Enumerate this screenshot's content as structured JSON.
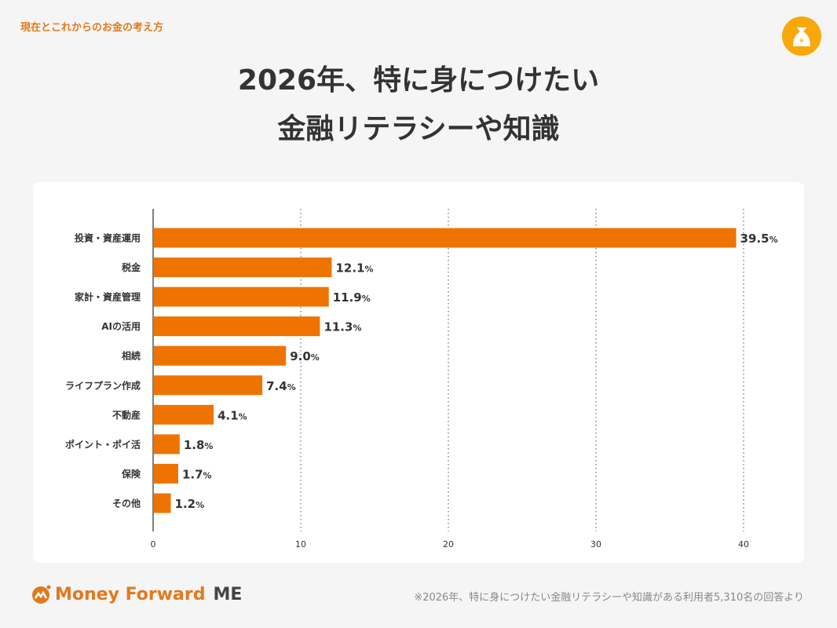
{
  "header": {
    "kicker": "現在とこれからのお金の考え方",
    "title_line1": "2026年、特に身につけたい",
    "title_line2": "金融リテラシーや知識",
    "badge_icon": "money-bag-yen-icon"
  },
  "chart_data": {
    "type": "bar",
    "orientation": "horizontal",
    "categories": [
      "投資・資産運用",
      "税金",
      "家計・資産管理",
      "AIの活用",
      "相続",
      "ライフプラン作成",
      "不動産",
      "ポイント・ポイ活",
      "保険",
      "その他"
    ],
    "values": [
      39.5,
      12.1,
      11.9,
      11.3,
      9.0,
      7.4,
      4.1,
      1.8,
      1.7,
      1.2
    ],
    "value_labels": [
      "39.5",
      "12.1",
      "11.9",
      "11.3",
      "9.0",
      "7.4",
      "4.1",
      "1.8",
      "1.7",
      "1.2"
    ],
    "unit": "%",
    "xlim": [
      0,
      40
    ],
    "xticks": [
      "0",
      "10",
      "20",
      "30",
      "40"
    ],
    "grid": "vertical dotted",
    "bar_color": "#ef7300"
  },
  "footer": {
    "brand": "Money Forward",
    "brand_suffix": "ME",
    "note": "※2026年、特に身につけたい金融リテラシーや知識がある利用者5,310名の回答より"
  }
}
